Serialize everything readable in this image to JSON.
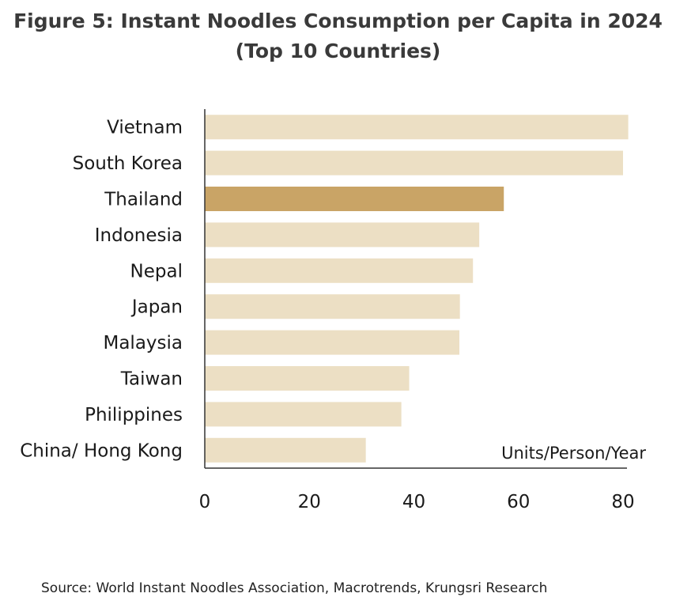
{
  "title_line1": "Figure 5: Instant Noodles Consumption per Capita in 2024",
  "title_line2": "(Top 10 Countries)",
  "source": "Source: World Instant Noodles Association, Macrotrends,  Krungsri Research",
  "chart_data": {
    "type": "bar",
    "orientation": "horizontal",
    "categories": [
      "Vietnam",
      "South Korea",
      "Thailand",
      "Indonesia",
      "Nepal",
      "Japan",
      "Malaysia",
      "Taiwan",
      "Philippines",
      "China/ Hong Kong"
    ],
    "values": [
      81,
      80,
      57.2,
      52.5,
      51.3,
      48.8,
      48.7,
      39.1,
      37.6,
      30.8
    ],
    "highlight": "Thailand",
    "unit_label": "Units/Person/Year",
    "xlim": [
      0,
      80
    ],
    "xticks": [
      "0",
      "20",
      "40",
      "60",
      "80"
    ],
    "grid": false,
    "legend": "none",
    "colors": {
      "bar": "#ecdfc4",
      "highlight": "#c9a466",
      "axis": "#333333"
    }
  }
}
